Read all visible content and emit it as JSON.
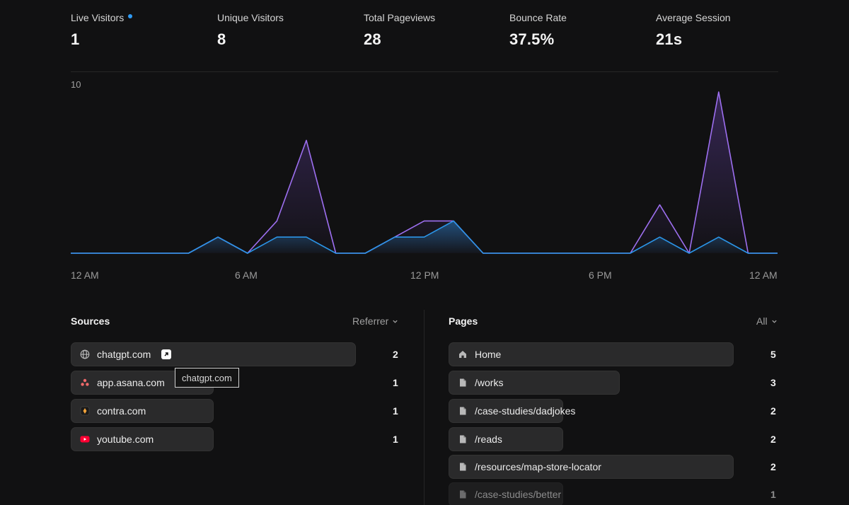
{
  "stats": [
    {
      "label": "Live Visitors",
      "value": "1",
      "live": true
    },
    {
      "label": "Unique Visitors",
      "value": "8"
    },
    {
      "label": "Total Pageviews",
      "value": "28"
    },
    {
      "label": "Bounce Rate",
      "value": "37.5%"
    },
    {
      "label": "Average Session",
      "value": "21s"
    }
  ],
  "colors": {
    "pageviews": "#9d6ff0",
    "visitors": "#2b95e8",
    "live_dot": "#2f9bf4"
  },
  "chart_data": {
    "type": "line",
    "x": [
      "12 AM",
      "1 AM",
      "2 AM",
      "3 AM",
      "4 AM",
      "5 AM",
      "6 AM",
      "7 AM",
      "8 AM",
      "9 AM",
      "10 AM",
      "11 AM",
      "12 PM",
      "1 PM",
      "2 PM",
      "3 PM",
      "4 PM",
      "5 PM",
      "6 PM",
      "7 PM",
      "8 PM",
      "9 PM",
      "10 PM",
      "11 PM",
      "12 AM"
    ],
    "x_tick_labels": [
      "12 AM",
      "6 AM",
      "12 PM",
      "6 PM",
      "12 AM"
    ],
    "y_max_label": "10",
    "ylim": [
      0,
      10
    ],
    "series": [
      {
        "name": "Pageviews",
        "values": [
          0,
          0,
          0,
          0,
          0,
          1,
          0,
          2,
          7,
          0,
          0,
          1,
          2,
          2,
          0,
          0,
          0,
          0,
          0,
          0,
          3,
          0,
          10,
          0,
          0
        ]
      },
      {
        "name": "Visitors",
        "values": [
          0,
          0,
          0,
          0,
          0,
          1,
          0,
          1,
          1,
          0,
          0,
          1,
          1,
          2,
          0,
          0,
          0,
          0,
          0,
          0,
          1,
          0,
          1,
          0,
          0
        ]
      }
    ]
  },
  "sources": {
    "title": "Sources",
    "filter": "Referrer",
    "max": 2,
    "items": [
      {
        "label": "chatgpt.com",
        "count": 2,
        "icon": "globe-icon"
      },
      {
        "label": "app.asana.com",
        "count": 1,
        "icon": "asana-icon"
      },
      {
        "label": "contra.com",
        "count": 1,
        "icon": "contra-icon"
      },
      {
        "label": "youtube.com",
        "count": 1,
        "icon": "youtube-icon"
      }
    ],
    "tooltip": "chatgpt.com"
  },
  "pages": {
    "title": "Pages",
    "filter": "All",
    "max": 5,
    "items": [
      {
        "label": "Home",
        "count": 5,
        "icon": "home-icon"
      },
      {
        "label": "/works",
        "count": 3,
        "icon": "file-icon"
      },
      {
        "label": "/case-studies/dadjokes",
        "count": 2,
        "icon": "file-icon"
      },
      {
        "label": "/reads",
        "count": 2,
        "icon": "file-icon"
      },
      {
        "label": "/resources/map-store-locator",
        "count": 2,
        "icon": "file-icon"
      },
      {
        "label": "/case-studies/better",
        "count": 1,
        "icon": "file-icon"
      }
    ]
  }
}
